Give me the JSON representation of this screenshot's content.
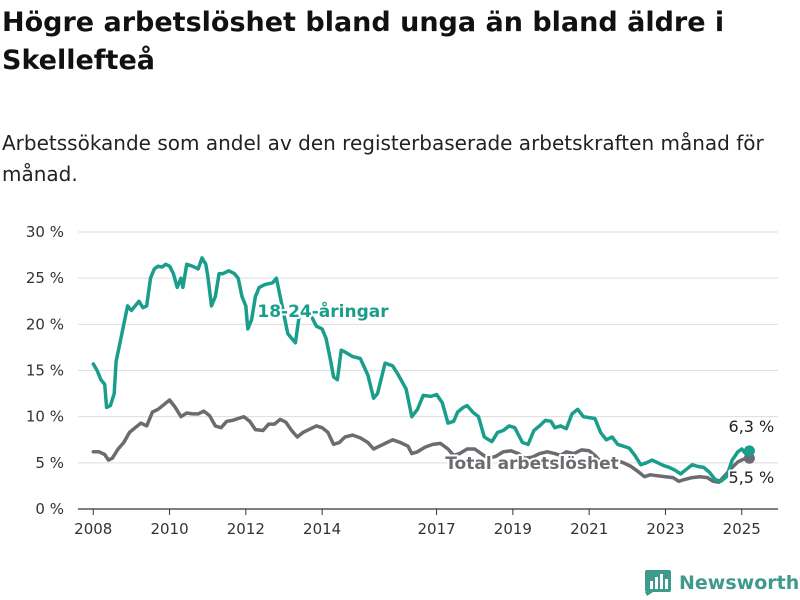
{
  "title": "Högre arbetslöshet bland unga än bland äldre i Skellefteå",
  "subtitle": "Arbetssökande som andel av den registerbaserade arbetskraften månad för månad.",
  "brand": {
    "name": "Newsworthy",
    "icon": "newsworthy-chart-logo-icon"
  },
  "chart_data": {
    "type": "line",
    "title": "Högre arbetslöshet bland unga än bland äldre i Skellefteå",
    "subtitle": "Arbetssökande som andel av den registerbaserade arbetskraften månad för månad.",
    "xlabel": "",
    "ylabel": "",
    "ylim": [
      0,
      30
    ],
    "xlim": [
      2007.6,
      2025.95
    ],
    "y_ticks": [
      0,
      5,
      10,
      15,
      20,
      25,
      30
    ],
    "y_tick_labels": [
      "0 %",
      "5 %",
      "10 %",
      "15 %",
      "20 %",
      "25 %",
      "30 %"
    ],
    "x_ticks": [
      2008,
      2010,
      2012,
      2014,
      2017,
      2019,
      2021,
      2023,
      2025
    ],
    "x_tick_labels": [
      "2008",
      "2010",
      "2012",
      "2014",
      "2017",
      "2019",
      "2021",
      "2023",
      "2025"
    ],
    "grid": "horizontal",
    "legend": "inline labels",
    "series": [
      {
        "name": "18-24-åringar",
        "color": "#1a9e8c",
        "end_label": "6,3 %",
        "points": [
          [
            2008.0,
            15.7
          ],
          [
            2008.1,
            15.0
          ],
          [
            2008.2,
            14.0
          ],
          [
            2008.3,
            13.5
          ],
          [
            2008.35,
            11.0
          ],
          [
            2008.45,
            11.2
          ],
          [
            2008.55,
            12.5
          ],
          [
            2008.6,
            16.0
          ],
          [
            2008.7,
            18.0
          ],
          [
            2008.8,
            20.0
          ],
          [
            2008.9,
            22.0
          ],
          [
            2009.0,
            21.5
          ],
          [
            2009.1,
            22.0
          ],
          [
            2009.2,
            22.5
          ],
          [
            2009.3,
            21.8
          ],
          [
            2009.4,
            22.0
          ],
          [
            2009.5,
            25.0
          ],
          [
            2009.6,
            26.0
          ],
          [
            2009.7,
            26.3
          ],
          [
            2009.8,
            26.2
          ],
          [
            2009.9,
            26.5
          ],
          [
            2010.0,
            26.3
          ],
          [
            2010.1,
            25.5
          ],
          [
            2010.2,
            24.0
          ],
          [
            2010.3,
            25.0
          ],
          [
            2010.35,
            24.0
          ],
          [
            2010.45,
            26.5
          ],
          [
            2010.6,
            26.3
          ],
          [
            2010.75,
            26.0
          ],
          [
            2010.85,
            27.2
          ],
          [
            2010.95,
            26.5
          ],
          [
            2011.0,
            25.3
          ],
          [
            2011.1,
            22.0
          ],
          [
            2011.2,
            23.0
          ],
          [
            2011.3,
            25.5
          ],
          [
            2011.4,
            25.5
          ],
          [
            2011.55,
            25.8
          ],
          [
            2011.7,
            25.5
          ],
          [
            2011.8,
            25.0
          ],
          [
            2011.9,
            23.0
          ],
          [
            2012.0,
            22.0
          ],
          [
            2012.05,
            19.5
          ],
          [
            2012.15,
            20.5
          ],
          [
            2012.25,
            23.0
          ],
          [
            2012.35,
            24.0
          ],
          [
            2012.5,
            24.3
          ],
          [
            2012.7,
            24.5
          ],
          [
            2012.8,
            25.0
          ],
          [
            2012.9,
            23.0
          ],
          [
            2013.0,
            21.0
          ],
          [
            2013.1,
            19.0
          ],
          [
            2013.2,
            18.5
          ],
          [
            2013.3,
            18.0
          ],
          [
            2013.4,
            21.0
          ],
          [
            2013.55,
            22.0
          ],
          [
            2013.7,
            21.0
          ],
          [
            2013.85,
            19.8
          ],
          [
            2014.0,
            19.5
          ],
          [
            2014.1,
            18.5
          ],
          [
            2014.2,
            16.5
          ],
          [
            2014.3,
            14.3
          ],
          [
            2014.4,
            14.0
          ],
          [
            2014.5,
            17.2
          ],
          [
            2014.6,
            17.0
          ],
          [
            2014.8,
            16.5
          ],
          [
            2015.0,
            16.3
          ],
          [
            2015.2,
            14.5
          ],
          [
            2015.35,
            12.0
          ],
          [
            2015.45,
            12.5
          ],
          [
            2015.65,
            15.8
          ],
          [
            2015.85,
            15.5
          ],
          [
            2016.0,
            14.5
          ],
          [
            2016.2,
            13.0
          ],
          [
            2016.35,
            10.0
          ],
          [
            2016.5,
            10.8
          ],
          [
            2016.65,
            12.3
          ],
          [
            2016.85,
            12.2
          ],
          [
            2017.0,
            12.4
          ],
          [
            2017.15,
            11.5
          ],
          [
            2017.3,
            9.3
          ],
          [
            2017.45,
            9.5
          ],
          [
            2017.55,
            10.5
          ],
          [
            2017.7,
            11.0
          ],
          [
            2017.8,
            11.2
          ],
          [
            2017.95,
            10.5
          ],
          [
            2018.1,
            10.0
          ],
          [
            2018.25,
            7.8
          ],
          [
            2018.45,
            7.3
          ],
          [
            2018.6,
            8.3
          ],
          [
            2018.75,
            8.5
          ],
          [
            2018.9,
            9.0
          ],
          [
            2019.05,
            8.8
          ],
          [
            2019.25,
            7.2
          ],
          [
            2019.4,
            7.0
          ],
          [
            2019.55,
            8.5
          ],
          [
            2019.7,
            9.0
          ],
          [
            2019.85,
            9.6
          ],
          [
            2020.0,
            9.5
          ],
          [
            2020.1,
            8.8
          ],
          [
            2020.25,
            9.0
          ],
          [
            2020.4,
            8.7
          ],
          [
            2020.55,
            10.3
          ],
          [
            2020.7,
            10.8
          ],
          [
            2020.85,
            10.0
          ],
          [
            2021.0,
            9.9
          ],
          [
            2021.15,
            9.8
          ],
          [
            2021.3,
            8.3
          ],
          [
            2021.45,
            7.5
          ],
          [
            2021.6,
            7.8
          ],
          [
            2021.75,
            7.0
          ],
          [
            2021.9,
            6.8
          ],
          [
            2022.05,
            6.6
          ],
          [
            2022.2,
            5.8
          ],
          [
            2022.35,
            4.8
          ],
          [
            2022.5,
            5.0
          ],
          [
            2022.65,
            5.3
          ],
          [
            2022.8,
            5.0
          ],
          [
            2022.95,
            4.7
          ],
          [
            2023.1,
            4.5
          ],
          [
            2023.25,
            4.2
          ],
          [
            2023.4,
            3.8
          ],
          [
            2023.55,
            4.3
          ],
          [
            2023.7,
            4.8
          ],
          [
            2023.85,
            4.6
          ],
          [
            2024.0,
            4.5
          ],
          [
            2024.15,
            4.0
          ],
          [
            2024.3,
            3.2
          ],
          [
            2024.45,
            3.0
          ],
          [
            2024.6,
            3.5
          ],
          [
            2024.75,
            5.3
          ],
          [
            2024.9,
            6.2
          ],
          [
            2025.0,
            6.5
          ],
          [
            2025.1,
            6.0
          ],
          [
            2025.2,
            6.3
          ]
        ]
      },
      {
        "name": "Total arbetslöshet",
        "color": "#6b6b70",
        "end_label": "5,5 %",
        "points": [
          [
            2008.0,
            6.2
          ],
          [
            2008.15,
            6.2
          ],
          [
            2008.3,
            5.9
          ],
          [
            2008.4,
            5.3
          ],
          [
            2008.5,
            5.5
          ],
          [
            2008.65,
            6.5
          ],
          [
            2008.8,
            7.2
          ],
          [
            2008.95,
            8.3
          ],
          [
            2009.1,
            8.8
          ],
          [
            2009.25,
            9.3
          ],
          [
            2009.4,
            9.0
          ],
          [
            2009.55,
            10.5
          ],
          [
            2009.7,
            10.8
          ],
          [
            2009.85,
            11.3
          ],
          [
            2010.0,
            11.8
          ],
          [
            2010.15,
            11.0
          ],
          [
            2010.3,
            10.0
          ],
          [
            2010.45,
            10.4
          ],
          [
            2010.6,
            10.3
          ],
          [
            2010.75,
            10.3
          ],
          [
            2010.9,
            10.6
          ],
          [
            2011.05,
            10.1
          ],
          [
            2011.2,
            9.0
          ],
          [
            2011.35,
            8.8
          ],
          [
            2011.5,
            9.5
          ],
          [
            2011.65,
            9.6
          ],
          [
            2011.8,
            9.8
          ],
          [
            2011.95,
            10.0
          ],
          [
            2012.1,
            9.5
          ],
          [
            2012.25,
            8.6
          ],
          [
            2012.45,
            8.5
          ],
          [
            2012.6,
            9.2
          ],
          [
            2012.75,
            9.2
          ],
          [
            2012.9,
            9.7
          ],
          [
            2013.05,
            9.4
          ],
          [
            2013.2,
            8.5
          ],
          [
            2013.35,
            7.8
          ],
          [
            2013.5,
            8.3
          ],
          [
            2013.65,
            8.6
          ],
          [
            2013.85,
            9.0
          ],
          [
            2014.0,
            8.8
          ],
          [
            2014.15,
            8.3
          ],
          [
            2014.3,
            7.0
          ],
          [
            2014.45,
            7.2
          ],
          [
            2014.6,
            7.8
          ],
          [
            2014.8,
            8.0
          ],
          [
            2015.0,
            7.7
          ],
          [
            2015.2,
            7.2
          ],
          [
            2015.35,
            6.5
          ],
          [
            2015.5,
            6.8
          ],
          [
            2015.7,
            7.2
          ],
          [
            2015.85,
            7.5
          ],
          [
            2016.05,
            7.2
          ],
          [
            2016.25,
            6.8
          ],
          [
            2016.35,
            6.0
          ],
          [
            2016.5,
            6.2
          ],
          [
            2016.7,
            6.7
          ],
          [
            2016.9,
            7.0
          ],
          [
            2017.1,
            7.1
          ],
          [
            2017.3,
            6.5
          ],
          [
            2017.45,
            5.8
          ],
          [
            2017.6,
            6.0
          ],
          [
            2017.8,
            6.5
          ],
          [
            2018.0,
            6.5
          ],
          [
            2018.2,
            5.9
          ],
          [
            2018.35,
            5.5
          ],
          [
            2018.55,
            5.7
          ],
          [
            2018.75,
            6.2
          ],
          [
            2018.95,
            6.3
          ],
          [
            2019.15,
            6.0
          ],
          [
            2019.3,
            5.5
          ],
          [
            2019.5,
            5.6
          ],
          [
            2019.7,
            6.0
          ],
          [
            2019.9,
            6.2
          ],
          [
            2020.1,
            6.0
          ],
          [
            2020.25,
            5.8
          ],
          [
            2020.4,
            6.2
          ],
          [
            2020.6,
            6.0
          ],
          [
            2020.8,
            6.4
          ],
          [
            2021.0,
            6.3
          ],
          [
            2021.15,
            5.8
          ],
          [
            2021.3,
            5.1
          ],
          [
            2021.5,
            5.0
          ],
          [
            2021.7,
            5.3
          ],
          [
            2021.9,
            5.0
          ],
          [
            2022.1,
            4.6
          ],
          [
            2022.3,
            4.0
          ],
          [
            2022.45,
            3.5
          ],
          [
            2022.6,
            3.7
          ],
          [
            2022.8,
            3.6
          ],
          [
            2023.0,
            3.5
          ],
          [
            2023.2,
            3.4
          ],
          [
            2023.35,
            3.0
          ],
          [
            2023.5,
            3.2
          ],
          [
            2023.7,
            3.4
          ],
          [
            2023.9,
            3.5
          ],
          [
            2024.1,
            3.4
          ],
          [
            2024.25,
            3.0
          ],
          [
            2024.4,
            2.9
          ],
          [
            2024.55,
            3.6
          ],
          [
            2024.75,
            4.5
          ],
          [
            2024.9,
            5.1
          ],
          [
            2025.05,
            5.4
          ],
          [
            2025.2,
            5.5
          ]
        ]
      }
    ]
  }
}
